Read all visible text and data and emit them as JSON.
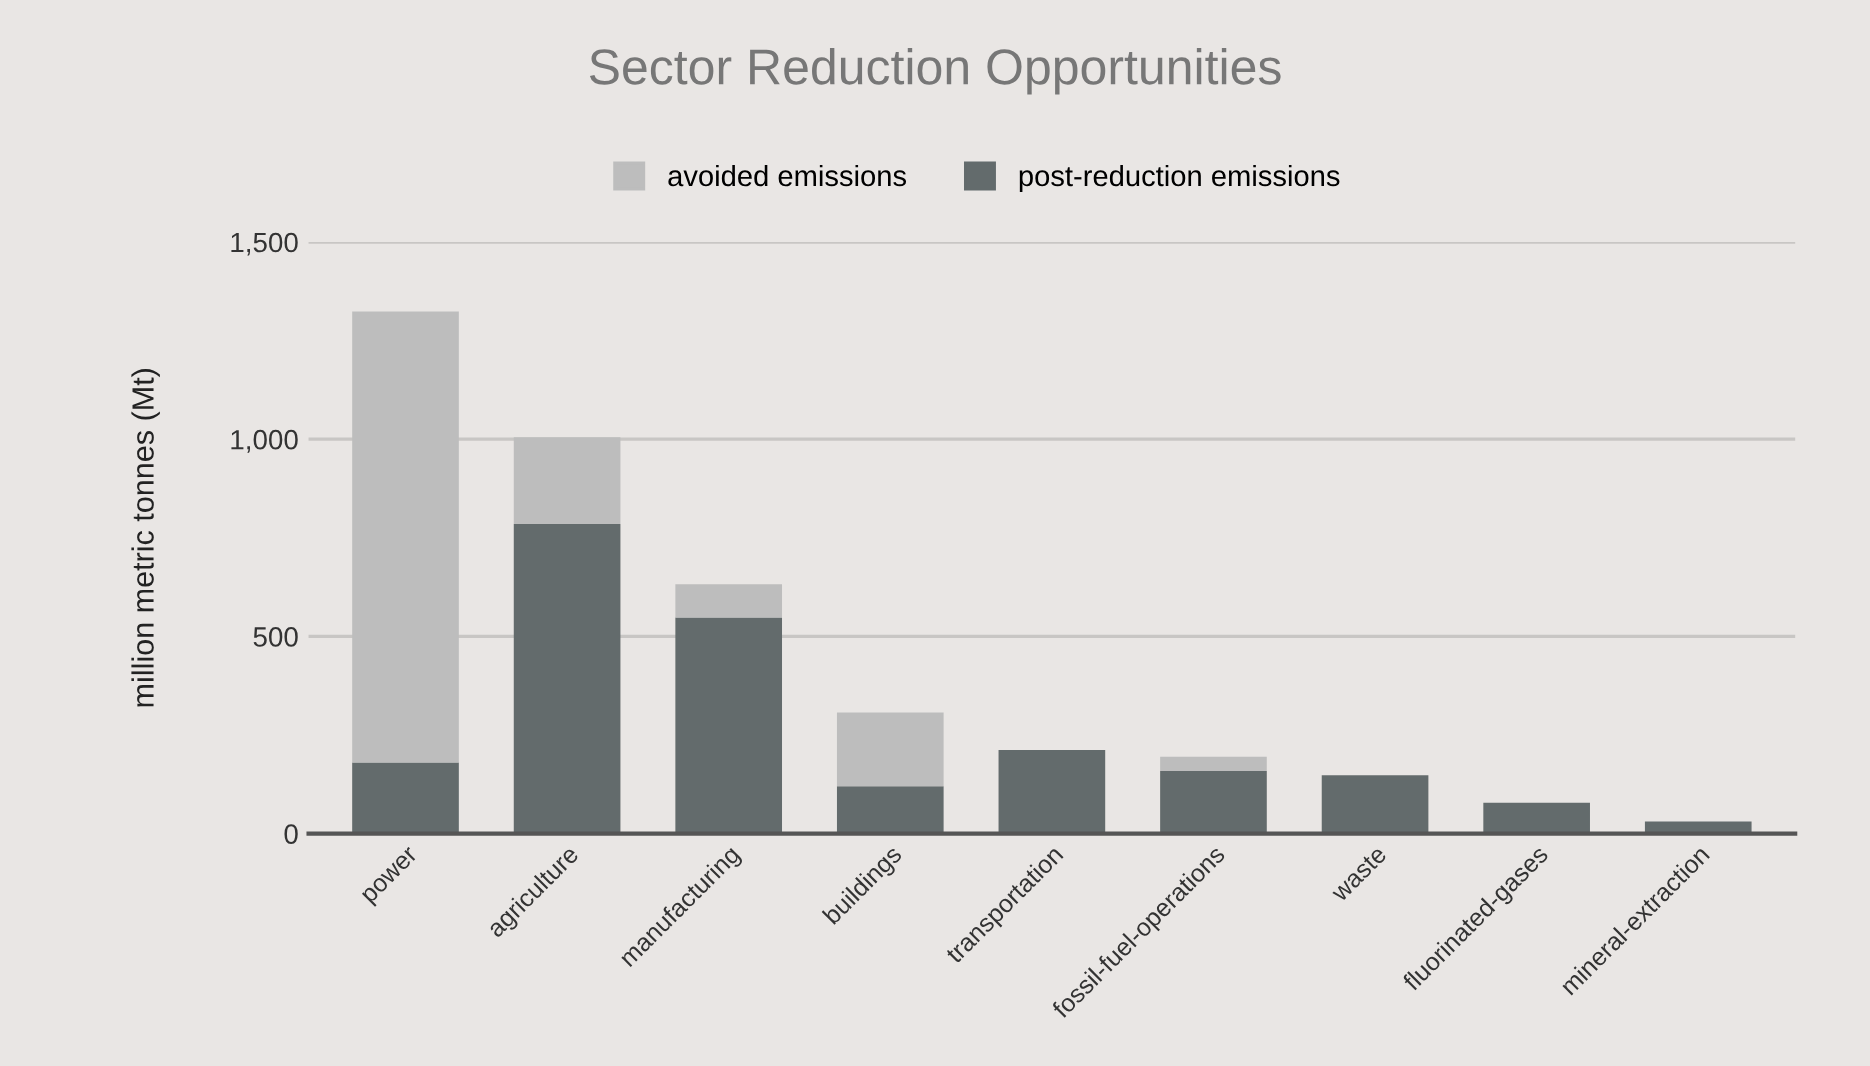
{
  "chart_data": {
    "type": "bar",
    "title": "Sector Reduction Opportunities",
    "ylabel": "million metric tonnes (Mt)",
    "categories": [
      "power",
      "agriculture",
      "manufacturing",
      "buildings",
      "transportation",
      "fossil-fuel-operations",
      "waste",
      "fluorinated-gases",
      "mineral-extraction"
    ],
    "stacked": true,
    "series": [
      {
        "name": "post-reduction emissions",
        "color": "#636b6c",
        "values": [
          180,
          785,
          548,
          120,
          212,
          159,
          148,
          78,
          31
        ]
      },
      {
        "name": "avoided emissions",
        "color": "#bdbdbd",
        "values": [
          1144,
          220,
          84,
          187,
          null,
          36,
          null,
          null,
          null
        ]
      }
    ],
    "ylim": [
      0,
      1500
    ],
    "yticks": [
      0,
      {
        "value": 500,
        "label": "500"
      },
      {
        "value": 1000,
        "label": "1,000"
      },
      {
        "value": 1500,
        "label": "1,500"
      }
    ],
    "grid": "y",
    "legend": "top"
  }
}
